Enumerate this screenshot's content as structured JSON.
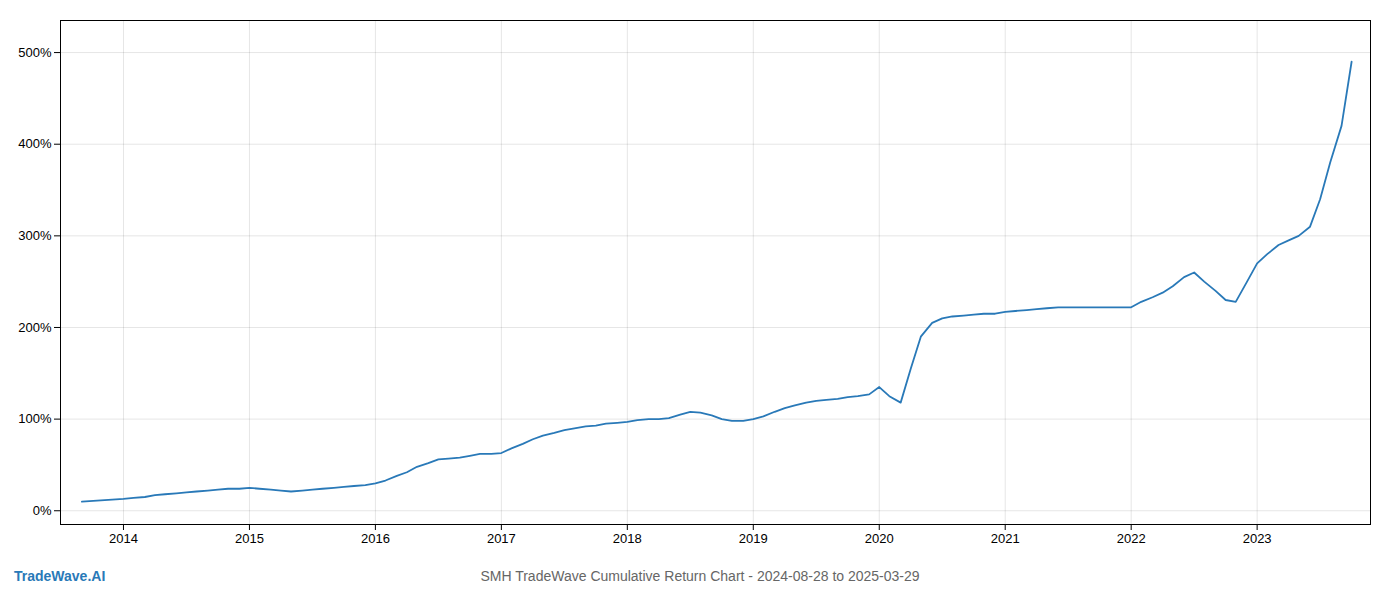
{
  "chart_data": {
    "type": "line",
    "title": "SMH TradeWave Cumulative Return Chart - 2024-08-28 to 2025-03-29",
    "annotations": [
      {
        "text": "TradeWave.AI",
        "color": "#2979b8"
      }
    ],
    "color": "#2979b8",
    "grid": true,
    "x": [
      2013.67,
      2014.0,
      2014.08,
      2014.17,
      2014.25,
      2014.33,
      2014.42,
      2014.5,
      2014.58,
      2014.67,
      2014.75,
      2014.83,
      2014.92,
      2015.0,
      2015.08,
      2015.17,
      2015.25,
      2015.33,
      2015.42,
      2015.5,
      2015.58,
      2015.67,
      2015.75,
      2015.83,
      2015.92,
      2016.0,
      2016.08,
      2016.17,
      2016.25,
      2016.33,
      2016.42,
      2016.5,
      2016.58,
      2016.67,
      2016.75,
      2016.83,
      2016.92,
      2017.0,
      2017.08,
      2017.17,
      2017.25,
      2017.33,
      2017.42,
      2017.5,
      2017.58,
      2017.67,
      2017.75,
      2017.83,
      2017.92,
      2018.0,
      2018.08,
      2018.17,
      2018.25,
      2018.33,
      2018.42,
      2018.5,
      2018.58,
      2018.67,
      2018.75,
      2018.83,
      2018.92,
      2019.0,
      2019.08,
      2019.17,
      2019.25,
      2019.33,
      2019.42,
      2019.5,
      2019.58,
      2019.67,
      2019.75,
      2019.83,
      2019.92,
      2020.0,
      2020.08,
      2020.17,
      2020.25,
      2020.33,
      2020.42,
      2020.5,
      2020.58,
      2020.67,
      2020.75,
      2020.83,
      2020.92,
      2021.0,
      2021.08,
      2021.17,
      2021.25,
      2021.33,
      2021.42,
      2021.5,
      2021.58,
      2021.67,
      2021.75,
      2021.83,
      2021.92,
      2022.0,
      2022.08,
      2022.17,
      2022.25,
      2022.33,
      2022.42,
      2022.5,
      2022.58,
      2022.67,
      2022.75,
      2022.83,
      2022.92,
      2023.0,
      2023.08,
      2023.17,
      2023.25,
      2023.33,
      2023.42,
      2023.5,
      2023.58,
      2023.67,
      2023.75
    ],
    "values": [
      10,
      13,
      14,
      15,
      17,
      18,
      19,
      20,
      21,
      22,
      23,
      24,
      24,
      25,
      24,
      23,
      22,
      21,
      22,
      23,
      24,
      25,
      26,
      27,
      28,
      30,
      33,
      38,
      42,
      48,
      52,
      56,
      57,
      58,
      60,
      62,
      62,
      63,
      68,
      73,
      78,
      82,
      85,
      88,
      90,
      92,
      93,
      95,
      96,
      97,
      99,
      100,
      100,
      101,
      105,
      108,
      107,
      104,
      100,
      98,
      98,
      100,
      103,
      108,
      112,
      115,
      118,
      120,
      121,
      122,
      124,
      125,
      127,
      135,
      125,
      118,
      155,
      190,
      205,
      210,
      212,
      213,
      214,
      215,
      215,
      217,
      218,
      219,
      220,
      221,
      222,
      222,
      222,
      222,
      222,
      222,
      222,
      222,
      228,
      233,
      238,
      245,
      255,
      260,
      250,
      240,
      230,
      228,
      250,
      270,
      280,
      290,
      295,
      300,
      310,
      340,
      380,
      420,
      490
    ],
    "xlim": [
      2013.5,
      2023.9
    ],
    "xticks": [
      2014,
      2015,
      2016,
      2017,
      2018,
      2019,
      2020,
      2021,
      2022,
      2023
    ],
    "ylim": [
      -15,
      535
    ],
    "yticks": [
      {
        "value": 0,
        "label": "0%"
      },
      {
        "value": 100,
        "label": "100%"
      },
      {
        "value": 200,
        "label": "200%"
      },
      {
        "value": 300,
        "label": "300%"
      },
      {
        "value": 400,
        "label": "400%"
      },
      {
        "value": 500,
        "label": "500%"
      }
    ]
  }
}
